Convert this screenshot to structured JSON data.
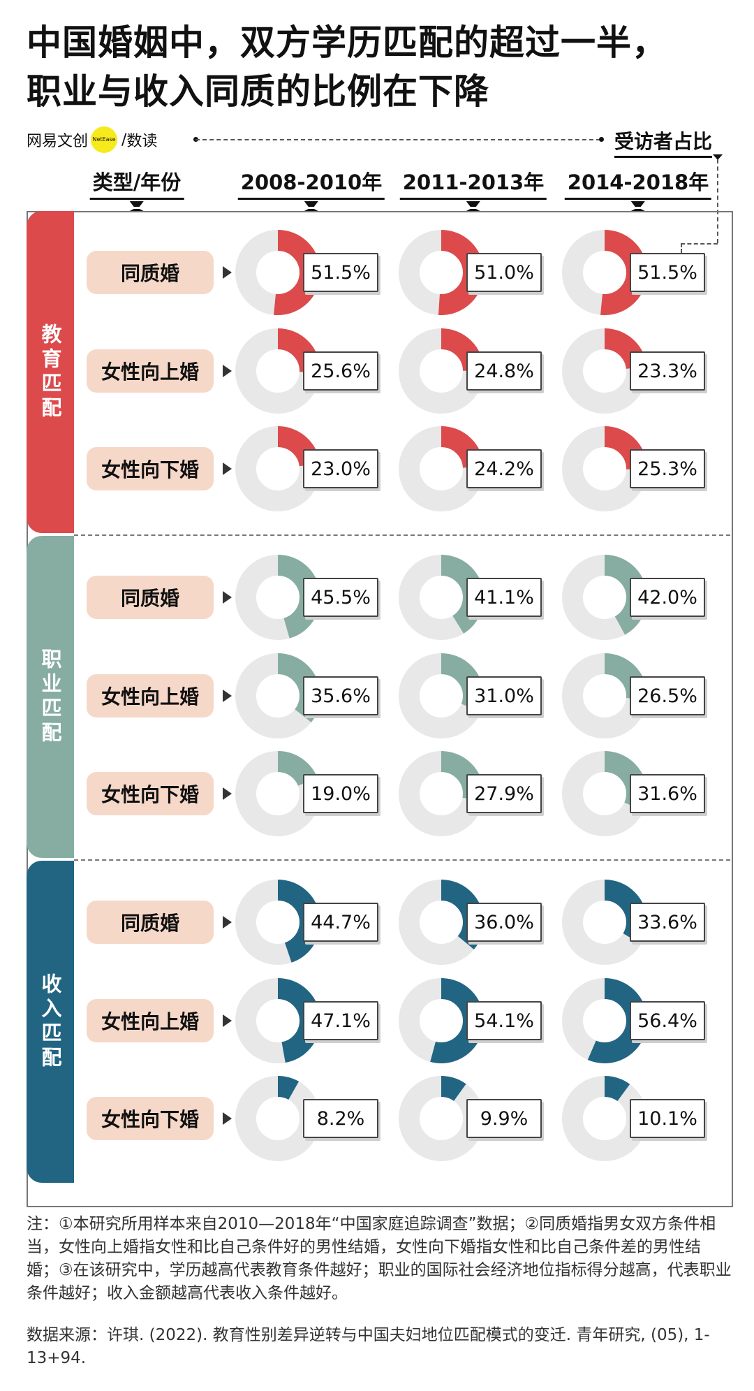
{
  "title": {
    "line1": "中国婚姻中，双方学历匹配的超过一半，",
    "line2": "职业与收入同质的比例在下降"
  },
  "brand": {
    "name": "网易文创",
    "dot_text": "NetEase",
    "separator": "/",
    "section": "数读"
  },
  "legend_label": "受访者占比",
  "colors": {
    "education": "#dd4a4c",
    "occupation": "#87ada3",
    "income": "#226583",
    "track": "#e8e8e8",
    "pill": "#f6d8c9"
  },
  "chart_data": {
    "type": "donut-grid",
    "row_header": "类型/年份",
    "periods": [
      "2008-2010年",
      "2011-2013年",
      "2014-2018年"
    ],
    "groups": [
      {
        "name": "教育匹配",
        "rows": [
          {
            "label": "同质婚",
            "values": [
              51.5,
              51.0,
              51.5
            ],
            "display": [
              "51.5%",
              "51.0%",
              "51.5%"
            ]
          },
          {
            "label": "女性向上婚",
            "values": [
              25.6,
              24.8,
              23.3
            ],
            "display": [
              "25.6%",
              "24.8%",
              "23.3%"
            ]
          },
          {
            "label": "女性向下婚",
            "values": [
              23.0,
              24.2,
              25.3
            ],
            "display": [
              "23.0%",
              "24.2%",
              "25.3%"
            ]
          }
        ]
      },
      {
        "name": "职业匹配",
        "rows": [
          {
            "label": "同质婚",
            "values": [
              45.5,
              41.1,
              42.0
            ],
            "display": [
              "45.5%",
              "41.1%",
              "42.0%"
            ]
          },
          {
            "label": "女性向上婚",
            "values": [
              35.6,
              31.0,
              26.5
            ],
            "display": [
              "35.6%",
              "31.0%",
              "26.5%"
            ]
          },
          {
            "label": "女性向下婚",
            "values": [
              19.0,
              27.9,
              31.6
            ],
            "display": [
              "19.0%",
              "27.9%",
              "31.6%"
            ]
          }
        ]
      },
      {
        "name": "收入匹配",
        "rows": [
          {
            "label": "同质婚",
            "values": [
              44.7,
              36.0,
              33.6
            ],
            "display": [
              "44.7%",
              "36.0%",
              "33.6%"
            ]
          },
          {
            "label": "女性向上婚",
            "values": [
              47.1,
              54.1,
              56.4
            ],
            "display": [
              "47.1%",
              "54.1%",
              "56.4%"
            ]
          },
          {
            "label": "女性向下婚",
            "values": [
              8.2,
              9.9,
              10.1
            ],
            "display": [
              "8.2%",
              "9.9%",
              "10.1%"
            ]
          }
        ]
      }
    ]
  },
  "note": "注：①本研究所用样本来自2010—2018年“中国家庭追踪调查”数据；②同质婚指男女双方条件相当，女性向上婚指女性和比自己条件好的男性结婚，女性向下婚指女性和比自己条件差的男性结婚；③在该研究中，学历越高代表教育条件越好；职业的国际社会经济地位指标得分越高，代表职业条件越好；收入金额越高代表收入条件越好。",
  "source": "数据来源：许琪. (2022). 教育性别差异逆转与中国夫妇地位匹配模式的变迁. 青年研究, (05), 1-13+94."
}
